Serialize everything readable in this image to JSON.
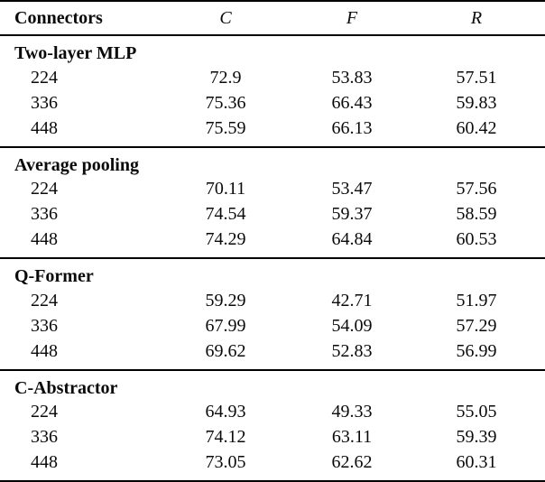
{
  "table": {
    "columns": [
      "Connectors",
      "C",
      "F",
      "R"
    ],
    "sections": [
      {
        "name": "Two-layer MLP",
        "rows": [
          {
            "label": "224",
            "values": [
              "72.9",
              "53.83",
              "57.51"
            ]
          },
          {
            "label": "336",
            "values": [
              "75.36",
              "66.43",
              "59.83"
            ]
          },
          {
            "label": "448",
            "values": [
              "75.59",
              "66.13",
              "60.42"
            ]
          }
        ]
      },
      {
        "name": "Average pooling",
        "rows": [
          {
            "label": "224",
            "values": [
              "70.11",
              "53.47",
              "57.56"
            ]
          },
          {
            "label": "336",
            "values": [
              "74.54",
              "59.37",
              "58.59"
            ]
          },
          {
            "label": "448",
            "values": [
              "74.29",
              "64.84",
              "60.53"
            ]
          }
        ]
      },
      {
        "name": "Q-Former",
        "rows": [
          {
            "label": "224",
            "values": [
              "59.29",
              "42.71",
              "51.97"
            ]
          },
          {
            "label": "336",
            "values": [
              "67.99",
              "54.09",
              "57.29"
            ]
          },
          {
            "label": "448",
            "values": [
              "69.62",
              "52.83",
              "56.99"
            ]
          }
        ]
      },
      {
        "name": "C-Abstractor",
        "rows": [
          {
            "label": "224",
            "values": [
              "64.93",
              "49.33",
              "55.05"
            ]
          },
          {
            "label": "336",
            "values": [
              "74.12",
              "63.11",
              "59.39"
            ]
          },
          {
            "label": "448",
            "values": [
              "73.05",
              "62.62",
              "60.31"
            ]
          }
        ]
      }
    ]
  },
  "colors": {
    "text": "#0a0a0a",
    "rule": "#000000",
    "background": "#ffffff"
  }
}
